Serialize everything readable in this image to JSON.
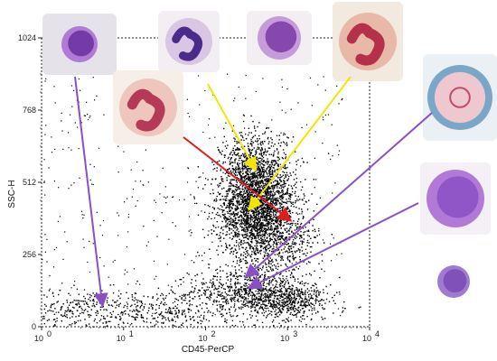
{
  "chart_data": {
    "type": "scatter",
    "title": "",
    "xlabel": "CD45-PerCP",
    "ylabel": "SSC-H",
    "x_scale": "log",
    "xlim": [
      1,
      10000
    ],
    "ylim": [
      0,
      1024
    ],
    "x_ticks": [
      1,
      10,
      100,
      1000,
      10000
    ],
    "x_tick_labels": [
      {
        "base": "10",
        "exp": "0"
      },
      {
        "base": "10",
        "exp": "1"
      },
      {
        "base": "10",
        "exp": "2"
      },
      {
        "base": "10",
        "exp": "3"
      },
      {
        "base": "10",
        "exp": "4"
      }
    ],
    "y_ticks": [
      0,
      256,
      512,
      768,
      1024
    ],
    "y_tick_labels": [
      "0",
      "256",
      "512",
      "768",
      "1024"
    ],
    "grid": false,
    "legend": "none",
    "point_color": "#000000",
    "populations": [
      {
        "cell": "lymphocyte (small, round nucleus)",
        "center": [
          1000,
          90
        ],
        "spread": [
          0.12,
          28
        ],
        "share": 0.08
      },
      {
        "cell": "monocyte (folded nucleus)",
        "center": [
          350,
          130
        ],
        "spread": [
          0.18,
          35
        ],
        "share": 0.12
      },
      {
        "cell": "neutrophil (segmented nucleus)",
        "center": [
          420,
          420
        ],
        "spread": [
          0.12,
          90
        ],
        "share": 0.45
      },
      {
        "cell": "eosinophil (granular)",
        "center": [
          380,
          560
        ],
        "spread": [
          0.1,
          70
        ],
        "share": 0.12
      },
      {
        "cell": "basophil",
        "center": [
          900,
          300
        ],
        "spread": [
          0.12,
          60
        ],
        "share": 0.06
      },
      {
        "cell": "low-CD45 events",
        "center": [
          8,
          60
        ],
        "spread": [
          0.6,
          40
        ],
        "share": 0.17
      }
    ],
    "annotations": [
      {
        "cell_image": "lymphoblast",
        "color": "#8a4fc4",
        "from": [
          5,
          1000
        ],
        "to": [
          5.5,
          80
        ]
      },
      {
        "cell_image": "segmented neutrophil",
        "color": "#f2e600",
        "from": [
          80,
          900
        ],
        "to": [
          400,
          560
        ]
      },
      {
        "cell_image": "band neutrophil",
        "color": "#f2e600",
        "from": [
          40,
          700
        ],
        "to": [
          350,
          420
        ]
      },
      {
        "cell_image": "eosinophil",
        "color": "#e01b1b",
        "from": [
          2000,
          900
        ],
        "to": [
          1050,
          380
        ]
      },
      {
        "cell_image": "basophil",
        "color": "#8a4fc4",
        "from": [
          9000,
          760
        ],
        "to": [
          320,
          180
        ]
      },
      {
        "cell_image": "monocyte",
        "color": "#8a4fc4",
        "from": [
          9500,
          480
        ],
        "to": [
          350,
          140
        ]
      }
    ]
  },
  "cell_images": [
    {
      "name": "lymphoblast",
      "bg": "#e6e2ea",
      "cell": "#b07ad6",
      "nucleus": "#6a2fa0"
    },
    {
      "name": "segmented neutrophil",
      "bg": "#f3eef4",
      "cell": "#d9c6e3",
      "nucleus": "#4a2a8a"
    },
    {
      "name": "basophil",
      "bg": "#f2eef2",
      "cell": "#c59bd9",
      "nucleus": "#7b3aa6"
    },
    {
      "name": "eosinophil",
      "bg": "#f3eadf",
      "cell": "#e8b8a8",
      "nucleus": "#b5314a"
    },
    {
      "name": "band neutrophil",
      "bg": "#f5efe7",
      "cell": "#efc6bd",
      "nucleus": "#b43a58"
    },
    {
      "name": "mast cell",
      "bg": "#eaf0f4",
      "cell": "#7aa6c8",
      "nucleus": "#c44a6a"
    },
    {
      "name": "monocyte",
      "bg": "#f5f0f6",
      "cell": "#b27ad6",
      "nucleus": "#8a4fc4"
    },
    {
      "name": "lymphocyte",
      "bg": "#ffffff",
      "cell": "#a07ad0",
      "nucleus": "#7a4bb5"
    }
  ]
}
